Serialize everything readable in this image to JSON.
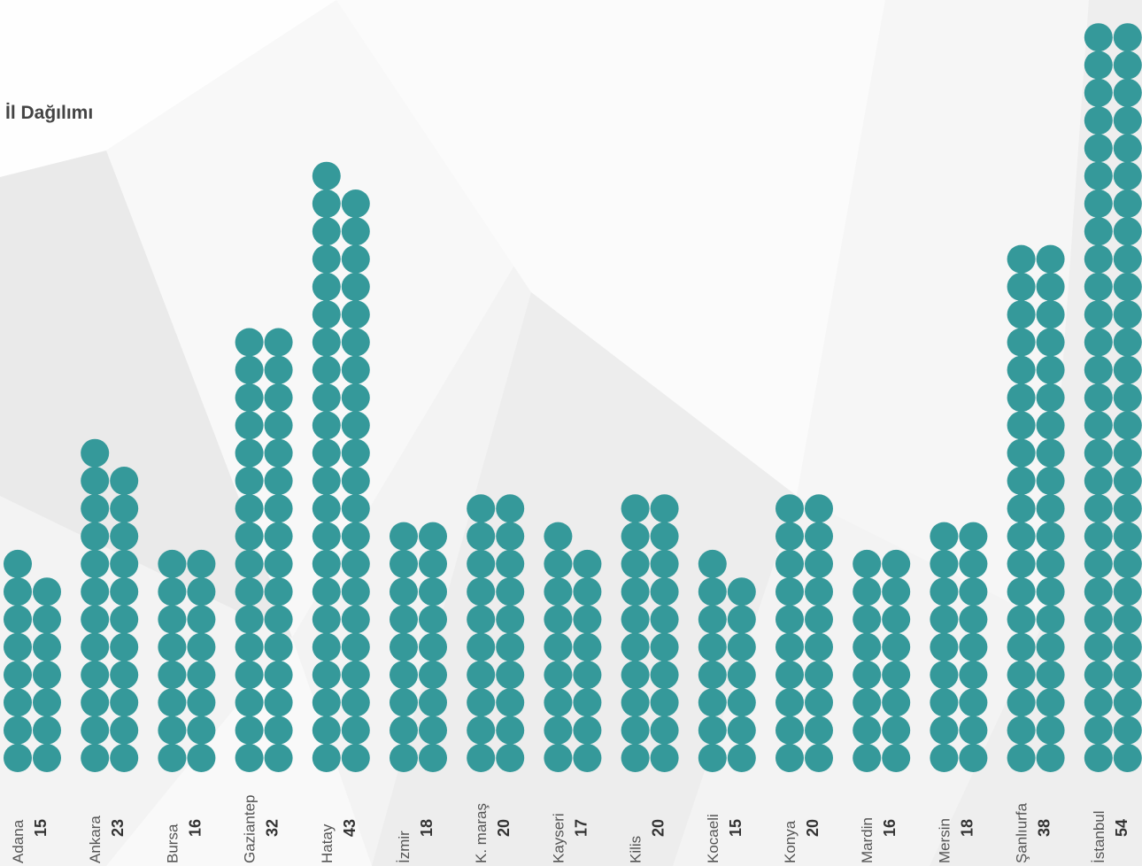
{
  "title": "İl Dağılımı",
  "chart_data": {
    "type": "bar",
    "title": "İl Dağılımı",
    "style": "pictogram-dots",
    "dot_color": "#35999a",
    "categories": [
      "Adana",
      "Ankara",
      "Bursa",
      "Gaziantep",
      "Hatay",
      "İzmir",
      "K. maraş",
      "Kayseri",
      "Kilis",
      "Kocaeli",
      "Konya",
      "Mardin",
      "Mersin",
      "Şanlıurfa",
      "İstanbul"
    ],
    "values": [
      15,
      23,
      16,
      32,
      43,
      18,
      20,
      17,
      20,
      15,
      20,
      16,
      18,
      38,
      54
    ],
    "value_labels": [
      "15",
      "23",
      "16",
      "32",
      "43",
      "18",
      "20",
      "17",
      "20",
      "15",
      "20",
      "16",
      "18",
      "38",
      "54"
    ],
    "xlabel": "",
    "ylabel": "",
    "grid": false,
    "legend": "none"
  }
}
